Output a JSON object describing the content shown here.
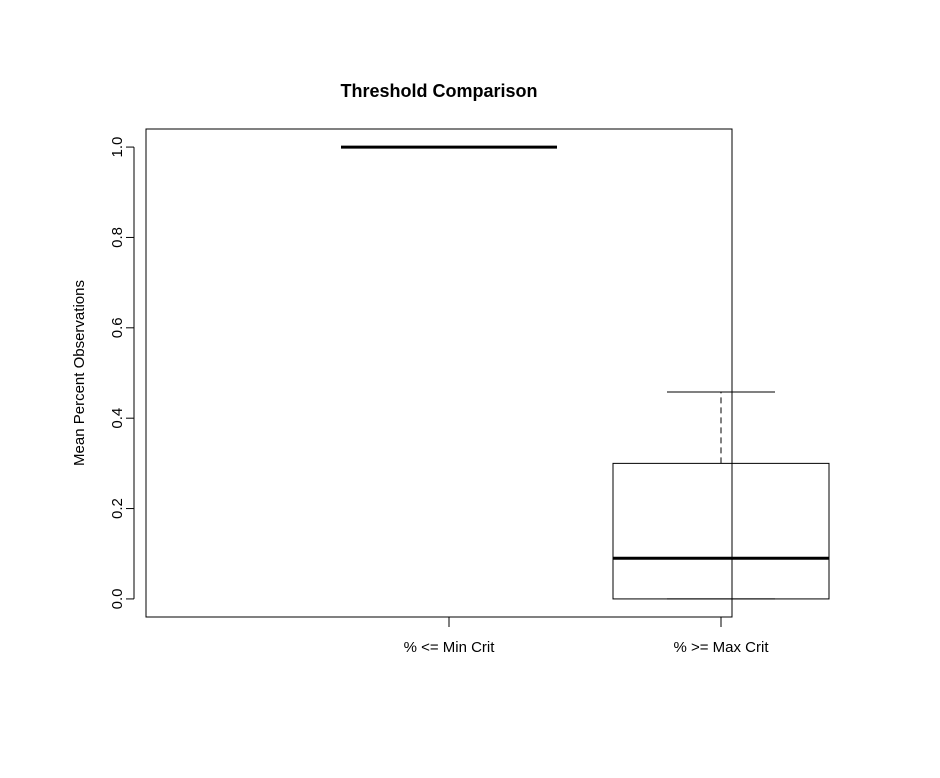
{
  "chart_data": {
    "type": "boxplot",
    "title": "Threshold Comparison",
    "xlabel": "",
    "ylabel": "Mean Percent Observations",
    "ylim": [
      -0.04,
      1.04
    ],
    "yticks": [
      0.0,
      0.2,
      0.4,
      0.6,
      0.8,
      1.0
    ],
    "ytick_labels": [
      "0.0",
      "0.2",
      "0.4",
      "0.6",
      "0.8",
      "1.0"
    ],
    "categories": [
      "% <= Min Crit",
      "% >= Max Crit"
    ],
    "boxes": [
      {
        "category": "% <= Min Crit",
        "min": 1.0,
        "q1": 1.0,
        "median": 1.0,
        "q3": 1.0,
        "max": 1.0
      },
      {
        "category": "% >= Max Crit",
        "min": 0.0,
        "q1": 0.0,
        "median": 0.09,
        "q3": 0.3,
        "max": 0.458
      }
    ],
    "grid": false,
    "legend": "none"
  }
}
